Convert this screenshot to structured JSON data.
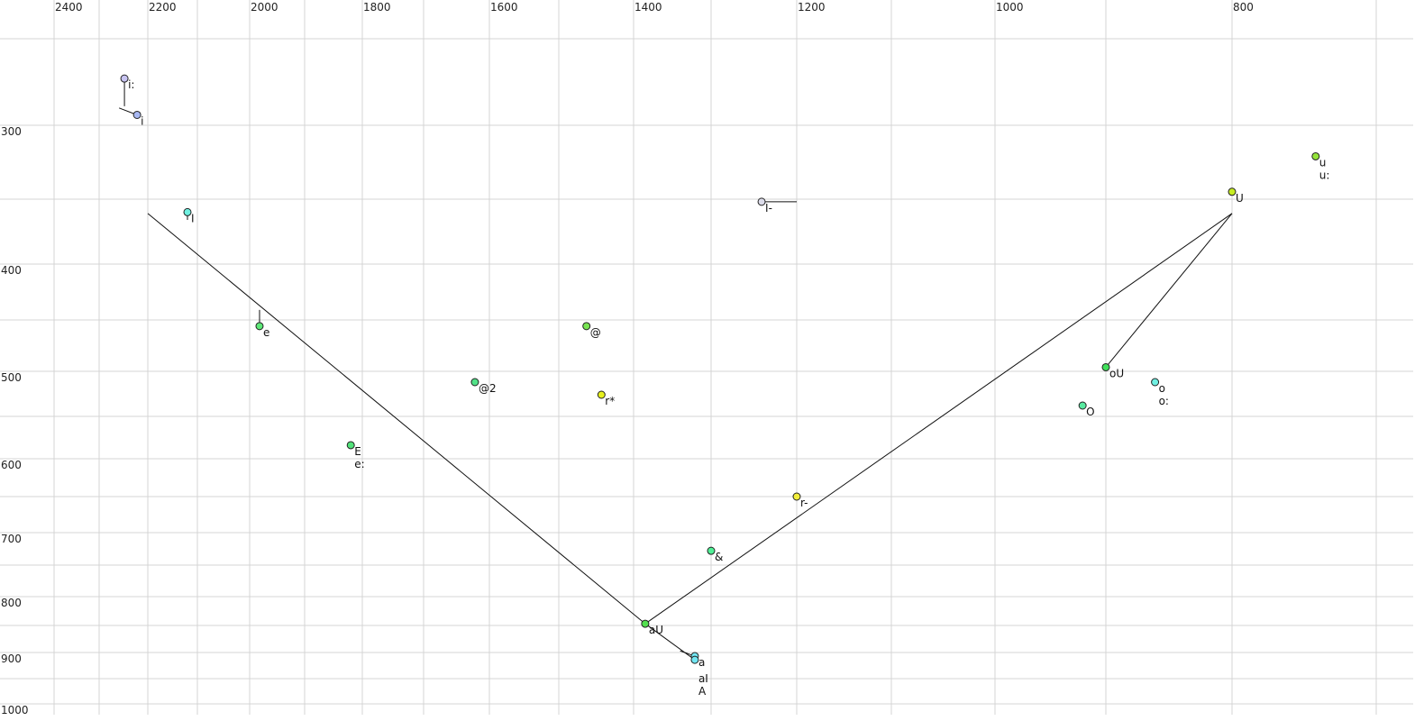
{
  "chart_data": {
    "type": "scatter",
    "title": "",
    "xlabel": "",
    "ylabel": "",
    "x_axis": {
      "reversed": true,
      "position": "top",
      "ticks": [
        2400,
        2200,
        2000,
        1800,
        1600,
        1400,
        1200,
        1000,
        800
      ],
      "minor_grid": [
        2300,
        2100,
        1900,
        1700,
        1500,
        1300,
        1100,
        900,
        700
      ]
    },
    "y_axis": {
      "reversed": true,
      "position": "left",
      "ticks": [
        300,
        400,
        500,
        600,
        700,
        800,
        900,
        1000
      ],
      "minor_grid": [
        250,
        350,
        450,
        550,
        650,
        750,
        850,
        950
      ]
    },
    "grid": true,
    "points": [
      {
        "labels": [
          "i:"
        ],
        "x": 2248,
        "y": 273,
        "color": "#c8c4f2"
      },
      {
        "labels": [
          "i"
        ],
        "x": 2222,
        "y": 294,
        "color": "#a8b8f2"
      },
      {
        "labels": [
          "I"
        ],
        "x": 2120,
        "y": 360,
        "color": "#6ff0e0"
      },
      {
        "labels": [
          "e"
        ],
        "x": 1982,
        "y": 456,
        "color": "#5ee878"
      },
      {
        "labels": [
          "E",
          "e:"
        ],
        "x": 1820,
        "y": 584,
        "color": "#52e27a"
      },
      {
        "labels": [
          "@"
        ],
        "x": 1463,
        "y": 456,
        "color": "#78e452"
      },
      {
        "labels": [
          "@2"
        ],
        "x": 1622,
        "y": 512,
        "color": "#52e288"
      },
      {
        "labels": [
          "r*"
        ],
        "x": 1443,
        "y": 526,
        "color": "#e6f01e"
      },
      {
        "labels": [
          "I-"
        ],
        "x": 1241,
        "y": 352,
        "color": "#dcdcea"
      },
      {
        "labels": [
          "r-"
        ],
        "x": 1200,
        "y": 650,
        "color": "#f2ee3a"
      },
      {
        "labels": [
          "&"
        ],
        "x": 1300,
        "y": 728,
        "color": "#50f096"
      },
      {
        "labels": [
          "aU"
        ],
        "x": 1385,
        "y": 847,
        "color": "#52e04e"
      },
      {
        "labels": [
          "a"
        ],
        "x": 1321,
        "y": 907,
        "color": "#72e6f2"
      },
      {
        "labels": [
          "aI",
          "A"
        ],
        "x": 1321,
        "y": 914,
        "color": "#72e6f2"
      },
      {
        "labels": [
          "U"
        ],
        "x": 800,
        "y": 345,
        "color": "#c6ec22"
      },
      {
        "labels": [
          "u",
          "u:"
        ],
        "x": 742,
        "y": 321,
        "color": "#94e43a"
      },
      {
        "labels": [
          "oU"
        ],
        "x": 900,
        "y": 496,
        "color": "#40e05a"
      },
      {
        "labels": [
          "o",
          "o:"
        ],
        "x": 861,
        "y": 512,
        "color": "#70f0e2"
      },
      {
        "labels": [
          "O"
        ],
        "x": 921,
        "y": 538,
        "color": "#58eaa0"
      }
    ],
    "trajectories": [
      [
        [
          2248,
          273
        ],
        [
          2248,
          289
        ]
      ],
      [
        [
          2222,
          294
        ],
        [
          2259,
          290
        ]
      ],
      [
        [
          2120,
          360
        ],
        [
          2120,
          366
        ]
      ],
      [
        [
          1982,
          456
        ],
        [
          1982,
          441
        ]
      ],
      [
        [
          1241,
          352
        ],
        [
          1200,
          352
        ]
      ],
      [
        [
          2200,
          361
        ],
        [
          1385,
          847
        ],
        [
          1321,
          914
        ]
      ],
      [
        [
          1340,
          897
        ],
        [
          1321,
          907
        ]
      ],
      [
        [
          1385,
          847
        ],
        [
          800,
          361
        ]
      ],
      [
        [
          900,
          496
        ],
        [
          800,
          361
        ]
      ]
    ]
  }
}
